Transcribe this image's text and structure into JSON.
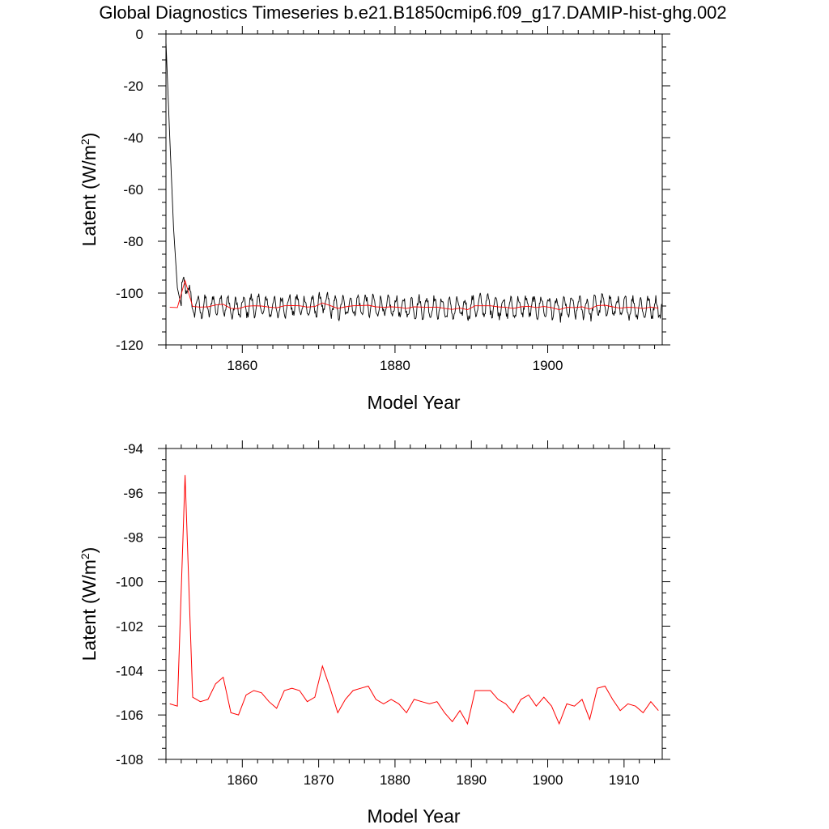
{
  "title": "Global Diagnostics Timeseries b.e21.B1850cmip6.f09_g17.DAMIP-hist-ghg.002",
  "colors": {
    "monthly": "#000000",
    "annual": "#ff0000",
    "frame": "#000000"
  },
  "chart_data": [
    {
      "type": "line",
      "xlabel": "Model Year",
      "ylabel_main": "Latent (W/m",
      "ylabel_sup": "2",
      "ylabel_close": ")",
      "xlim": [
        1850,
        1915
      ],
      "ylim": [
        -120,
        0
      ],
      "xticks": [
        1860,
        1880,
        1900
      ],
      "yticks": [
        0,
        -20,
        -40,
        -60,
        -80,
        -100,
        -120
      ],
      "series": [
        {
          "role": "monthly",
          "color": "#000000",
          "note": "monthly values: starts near 0 at 1850, drops to about -100 by 1852, then oscillates roughly between -110 and -101 with an annual cycle through 1915",
          "x": [
            1850.0,
            1850.5,
            1851.0,
            1851.5,
            1852.0
          ],
          "values": [
            -3,
            -40,
            -75,
            -98,
            -105
          ]
        },
        {
          "role": "annual",
          "color": "#ff0000",
          "x_start": 1850.5,
          "x_step": 1,
          "values": [
            -105.5,
            -105.6,
            -95.2,
            -105.2,
            -105.4,
            -105.3,
            -104.6,
            -104.3,
            -105.9,
            -106.0,
            -105.1,
            -104.9,
            -105.0,
            -105.4,
            -105.7,
            -104.9,
            -104.8,
            -104.9,
            -105.4,
            -105.2,
            -103.8,
            -104.8,
            -105.9,
            -105.3,
            -104.9,
            -104.8,
            -104.7,
            -105.3,
            -105.5,
            -105.3,
            -105.5,
            -105.9,
            -105.3,
            -105.4,
            -105.5,
            -105.4,
            -105.9,
            -106.3,
            -105.8,
            -106.4,
            -104.9,
            -104.9,
            -104.9,
            -105.3,
            -105.5,
            -105.9,
            -105.3,
            -105.1,
            -105.6,
            -105.2,
            -105.6,
            -106.4,
            -105.5,
            -105.6,
            -105.3,
            -106.2,
            -104.8,
            -104.7,
            -105.3,
            -105.8,
            -105.5,
            -105.6,
            -105.9,
            -105.4,
            -105.8
          ]
        }
      ]
    },
    {
      "type": "line",
      "xlabel": "Model Year",
      "ylabel_main": "Latent (W/m",
      "ylabel_sup": "2",
      "ylabel_close": ")",
      "xlim": [
        1850,
        1915
      ],
      "ylim": [
        -108,
        -94
      ],
      "xticks": [
        1860,
        1870,
        1880,
        1890,
        1900,
        1910
      ],
      "yticks": [
        -94,
        -96,
        -98,
        -100,
        -102,
        -104,
        -106,
        -108
      ],
      "series": [
        {
          "role": "annual",
          "color": "#ff0000",
          "x_start": 1850.5,
          "x_step": 1,
          "same_as": "annual"
        }
      ]
    }
  ]
}
